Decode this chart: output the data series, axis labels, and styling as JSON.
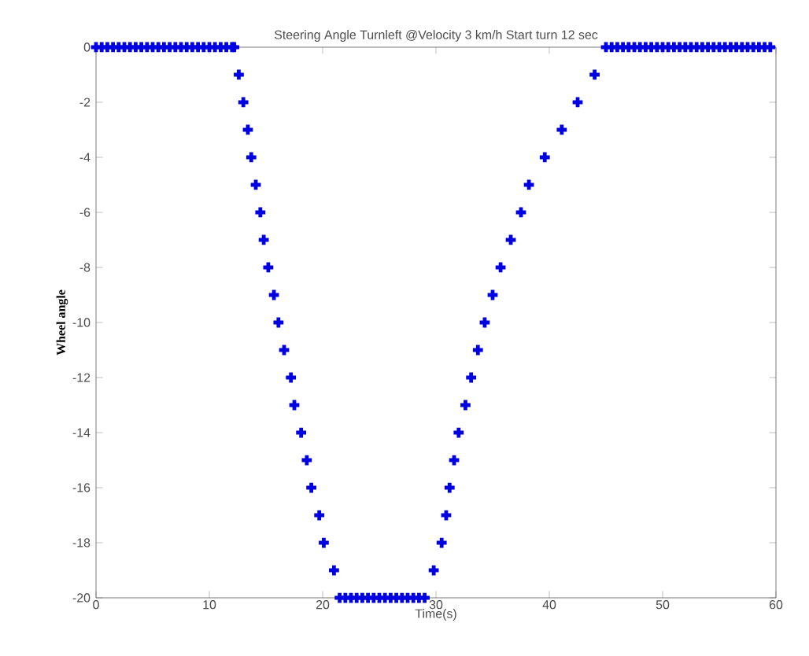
{
  "chart_data": {
    "type": "scatter",
    "title": "Steering Angle Turnleft @Velocity 3 km/h Start turn 12 sec",
    "xlabel": "Time(s)",
    "ylabel": "Wheel angle",
    "xlim": [
      0,
      60
    ],
    "ylim": [
      -20,
      0
    ],
    "xticks": [
      0,
      10,
      20,
      30,
      40,
      50,
      60
    ],
    "yticks": [
      -20,
      -18,
      -16,
      -14,
      -12,
      -10,
      -8,
      -6,
      -4,
      -2,
      0
    ],
    "marker": "cross",
    "series": [
      {
        "color": "#0000e0",
        "x": [
          0,
          0.5,
          1,
          1.5,
          2,
          2.5,
          3,
          3.5,
          4,
          4.5,
          5,
          5.5,
          6,
          6.5,
          7,
          7.5,
          8,
          8.5,
          9,
          9.5,
          10,
          10.5,
          11,
          11.5,
          12,
          12.2,
          12.6,
          13.0,
          13.4,
          13.7,
          14.1,
          14.5,
          14.8,
          15.2,
          15.7,
          16.1,
          16.6,
          17.2,
          17.5,
          18.1,
          18.6,
          19.0,
          19.7,
          20.1,
          21.0,
          21.5,
          22,
          22.5,
          23,
          23.5,
          24,
          24.5,
          25,
          25.5,
          26,
          26.5,
          27,
          27.5,
          28,
          28.5,
          29,
          29.8,
          30.5,
          30.9,
          31.2,
          31.6,
          32.0,
          32.6,
          33.1,
          33.7,
          34.3,
          35.0,
          35.7,
          36.6,
          37.5,
          38.2,
          39.6,
          41.1,
          42.5,
          44.0,
          45,
          45.5,
          46,
          46.5,
          47,
          47.5,
          48,
          48.5,
          49,
          49.5,
          50,
          50.5,
          51,
          51.5,
          52,
          52.5,
          53,
          53.5,
          54,
          54.5,
          55,
          55.5,
          56,
          56.5,
          57,
          57.5,
          58,
          58.5,
          59,
          59.5
        ],
        "values": [
          0,
          0,
          0,
          0,
          0,
          0,
          0,
          0,
          0,
          0,
          0,
          0,
          0,
          0,
          0,
          0,
          0,
          0,
          0,
          0,
          0,
          0,
          0,
          0,
          0,
          0,
          -1,
          -2,
          -3,
          -4,
          -5,
          -6,
          -7,
          -8,
          -9,
          -10,
          -11,
          -12,
          -13,
          -14,
          -15,
          -16,
          -17,
          -18,
          -19,
          -20,
          -20,
          -20,
          -20,
          -20,
          -20,
          -20,
          -20,
          -20,
          -20,
          -20,
          -20,
          -20,
          -20,
          -20,
          -20,
          -19,
          -18,
          -17,
          -16,
          -15,
          -14,
          -13,
          -12,
          -11,
          -10,
          -9,
          -8,
          -7,
          -6,
          -5,
          -4,
          -3,
          -2,
          -1,
          0,
          0,
          0,
          0,
          0,
          0,
          0,
          0,
          0,
          0,
          0,
          0,
          0,
          0,
          0,
          0,
          0,
          0,
          0,
          0,
          0,
          0,
          0,
          0,
          0,
          0,
          0,
          0,
          0,
          0
        ]
      }
    ]
  }
}
